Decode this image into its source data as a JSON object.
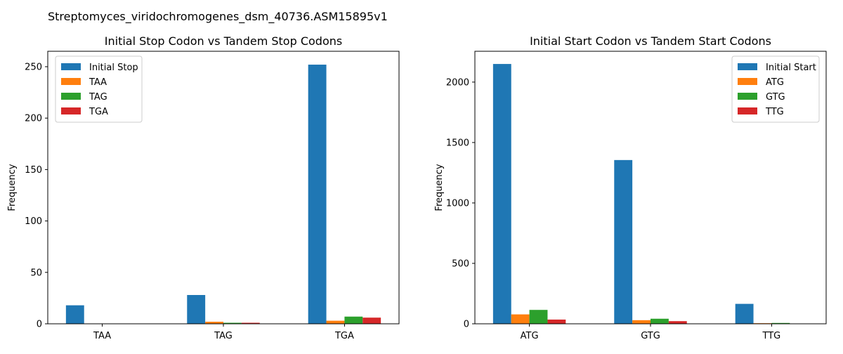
{
  "suptitle": "Streptomyces_viridochromogenes_dsm_40736.ASM15895v1",
  "chart_data": [
    {
      "type": "bar",
      "title": "Initial Stop Codon vs Tandem Stop Codons",
      "xlabel": "",
      "ylabel": "Frequency",
      "categories": [
        "TAA",
        "TAG",
        "TGA"
      ],
      "ylim": [
        0,
        265
      ],
      "yticks": [
        0,
        50,
        100,
        150,
        200,
        250
      ],
      "legend_position": "top-left",
      "series": [
        {
          "name": "Initial Stop",
          "color": "#1f77b4",
          "values": [
            18,
            28,
            252
          ]
        },
        {
          "name": "TAA",
          "color": "#ff7f0e",
          "values": [
            0,
            2,
            3
          ]
        },
        {
          "name": "TAG",
          "color": "#2ca02c",
          "values": [
            0,
            1,
            7
          ]
        },
        {
          "name": "TGA",
          "color": "#d62728",
          "values": [
            0,
            1,
            6
          ]
        }
      ]
    },
    {
      "type": "bar",
      "title": "Initial Start Codon vs Tandem Start Codons",
      "xlabel": "",
      "ylabel": "Frequency",
      "categories": [
        "ATG",
        "GTG",
        "TTG"
      ],
      "ylim": [
        0,
        2255
      ],
      "yticks": [
        0,
        500,
        1000,
        1500,
        2000
      ],
      "legend_position": "top-right",
      "series": [
        {
          "name": "Initial Start",
          "color": "#1f77b4",
          "values": [
            2150,
            1355,
            165
          ]
        },
        {
          "name": "ATG",
          "color": "#ff7f0e",
          "values": [
            78,
            30,
            5
          ]
        },
        {
          "name": "GTG",
          "color": "#2ca02c",
          "values": [
            115,
            42,
            7
          ]
        },
        {
          "name": "TTG",
          "color": "#d62728",
          "values": [
            35,
            22,
            2
          ]
        }
      ]
    }
  ]
}
